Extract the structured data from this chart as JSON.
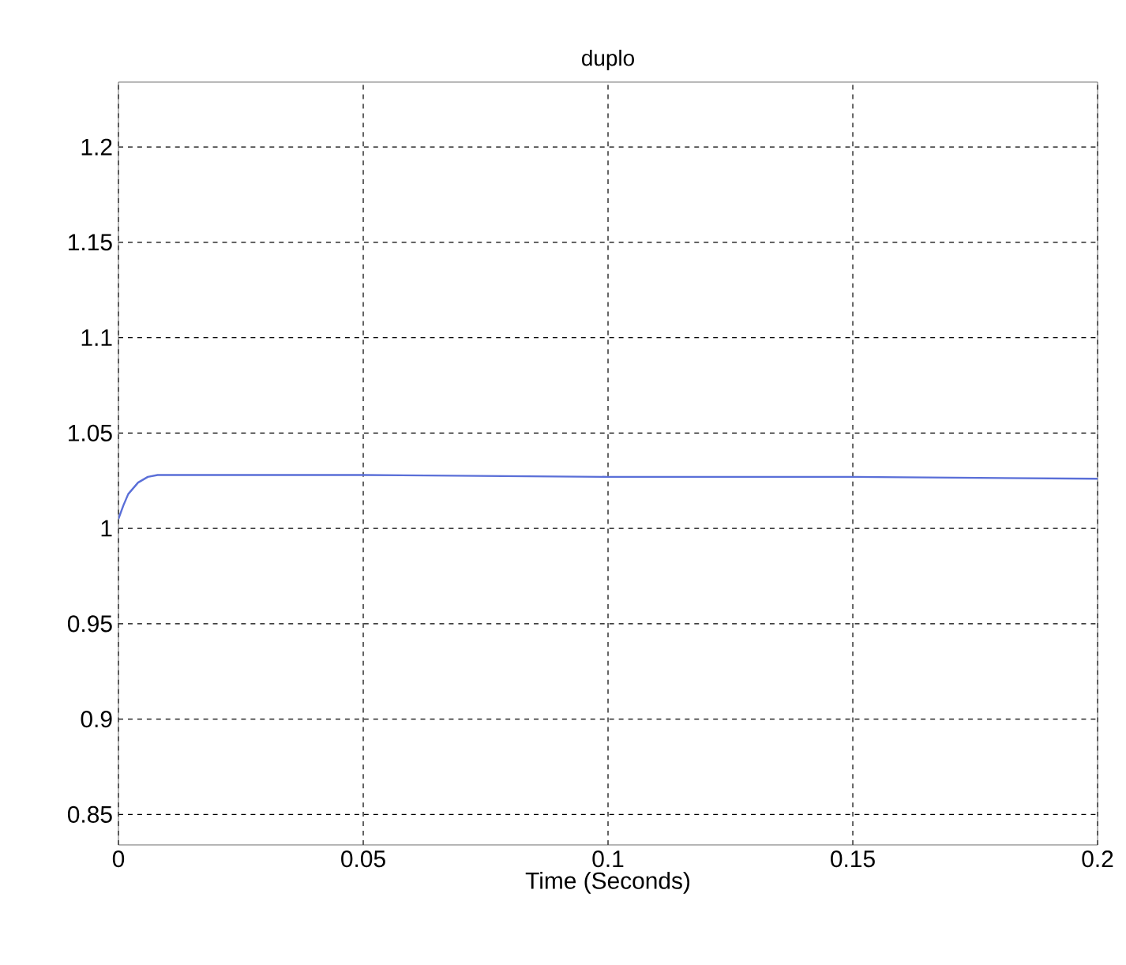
{
  "chart_data": {
    "type": "line",
    "title": "duplo",
    "xlabel": "Time (Seconds)",
    "xlim": [
      0,
      0.2
    ],
    "ylim": [
      0.834,
      1.234
    ],
    "xticks": [
      0,
      0.05,
      0.1,
      0.15,
      0.2
    ],
    "yticks": [
      0.85,
      0.9,
      0.95,
      1,
      1.05,
      1.1,
      1.15,
      1.2
    ],
    "grid": true,
    "line_style": "solid",
    "x": [
      0,
      0.001,
      0.002,
      0.003,
      0.004,
      0.006,
      0.008,
      0.01,
      0.05,
      0.1,
      0.15,
      0.2
    ],
    "series": [
      {
        "color": "#5a6fd8",
        "values": [
          1.005,
          1.012,
          1.018,
          1.021,
          1.024,
          1.027,
          1.028,
          1.028,
          1.028,
          1.027,
          1.027,
          1.026
        ]
      }
    ]
  }
}
